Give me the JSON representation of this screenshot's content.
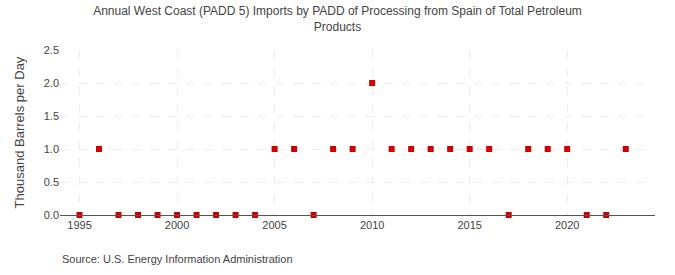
{
  "chart_data": {
    "type": "scatter",
    "title": "Annual West Coast (PADD 5) Imports by PADD of Processing from Spain of Total Petroleum\nProducts",
    "y_label": "Thousand Barrels per Day",
    "annotations": [
      "Source: U.S. Energy Information Administration"
    ],
    "x": [
      1995,
      1996,
      1997,
      1998,
      1999,
      2000,
      2001,
      2002,
      2003,
      2004,
      2005,
      2006,
      2007,
      2008,
      2009,
      2010,
      2011,
      2012,
      2013,
      2014,
      2015,
      2016,
      2017,
      2018,
      2019,
      2020,
      2021,
      2022,
      2023
    ],
    "values": [
      0,
      1,
      0,
      0,
      0,
      0,
      0,
      0,
      0,
      0,
      1,
      1,
      0,
      1,
      1,
      2,
      1,
      1,
      1,
      1,
      1,
      1,
      0,
      1,
      1,
      1,
      0,
      0,
      1
    ],
    "color": "#cc0000",
    "marker": "square",
    "xlim": [
      1994,
      2024.5
    ],
    "xticks": [
      1995,
      2000,
      2005,
      2010,
      2015,
      2020
    ],
    "ylim": [
      0.0,
      2.5
    ],
    "yticks": [
      {
        "value": 0.0,
        "label": "0.0"
      },
      0.5,
      {
        "value": 1.0,
        "label": "1.0"
      },
      1.5,
      {
        "value": 2.0,
        "label": "2.0"
      },
      2.5
    ],
    "grid": true
  }
}
